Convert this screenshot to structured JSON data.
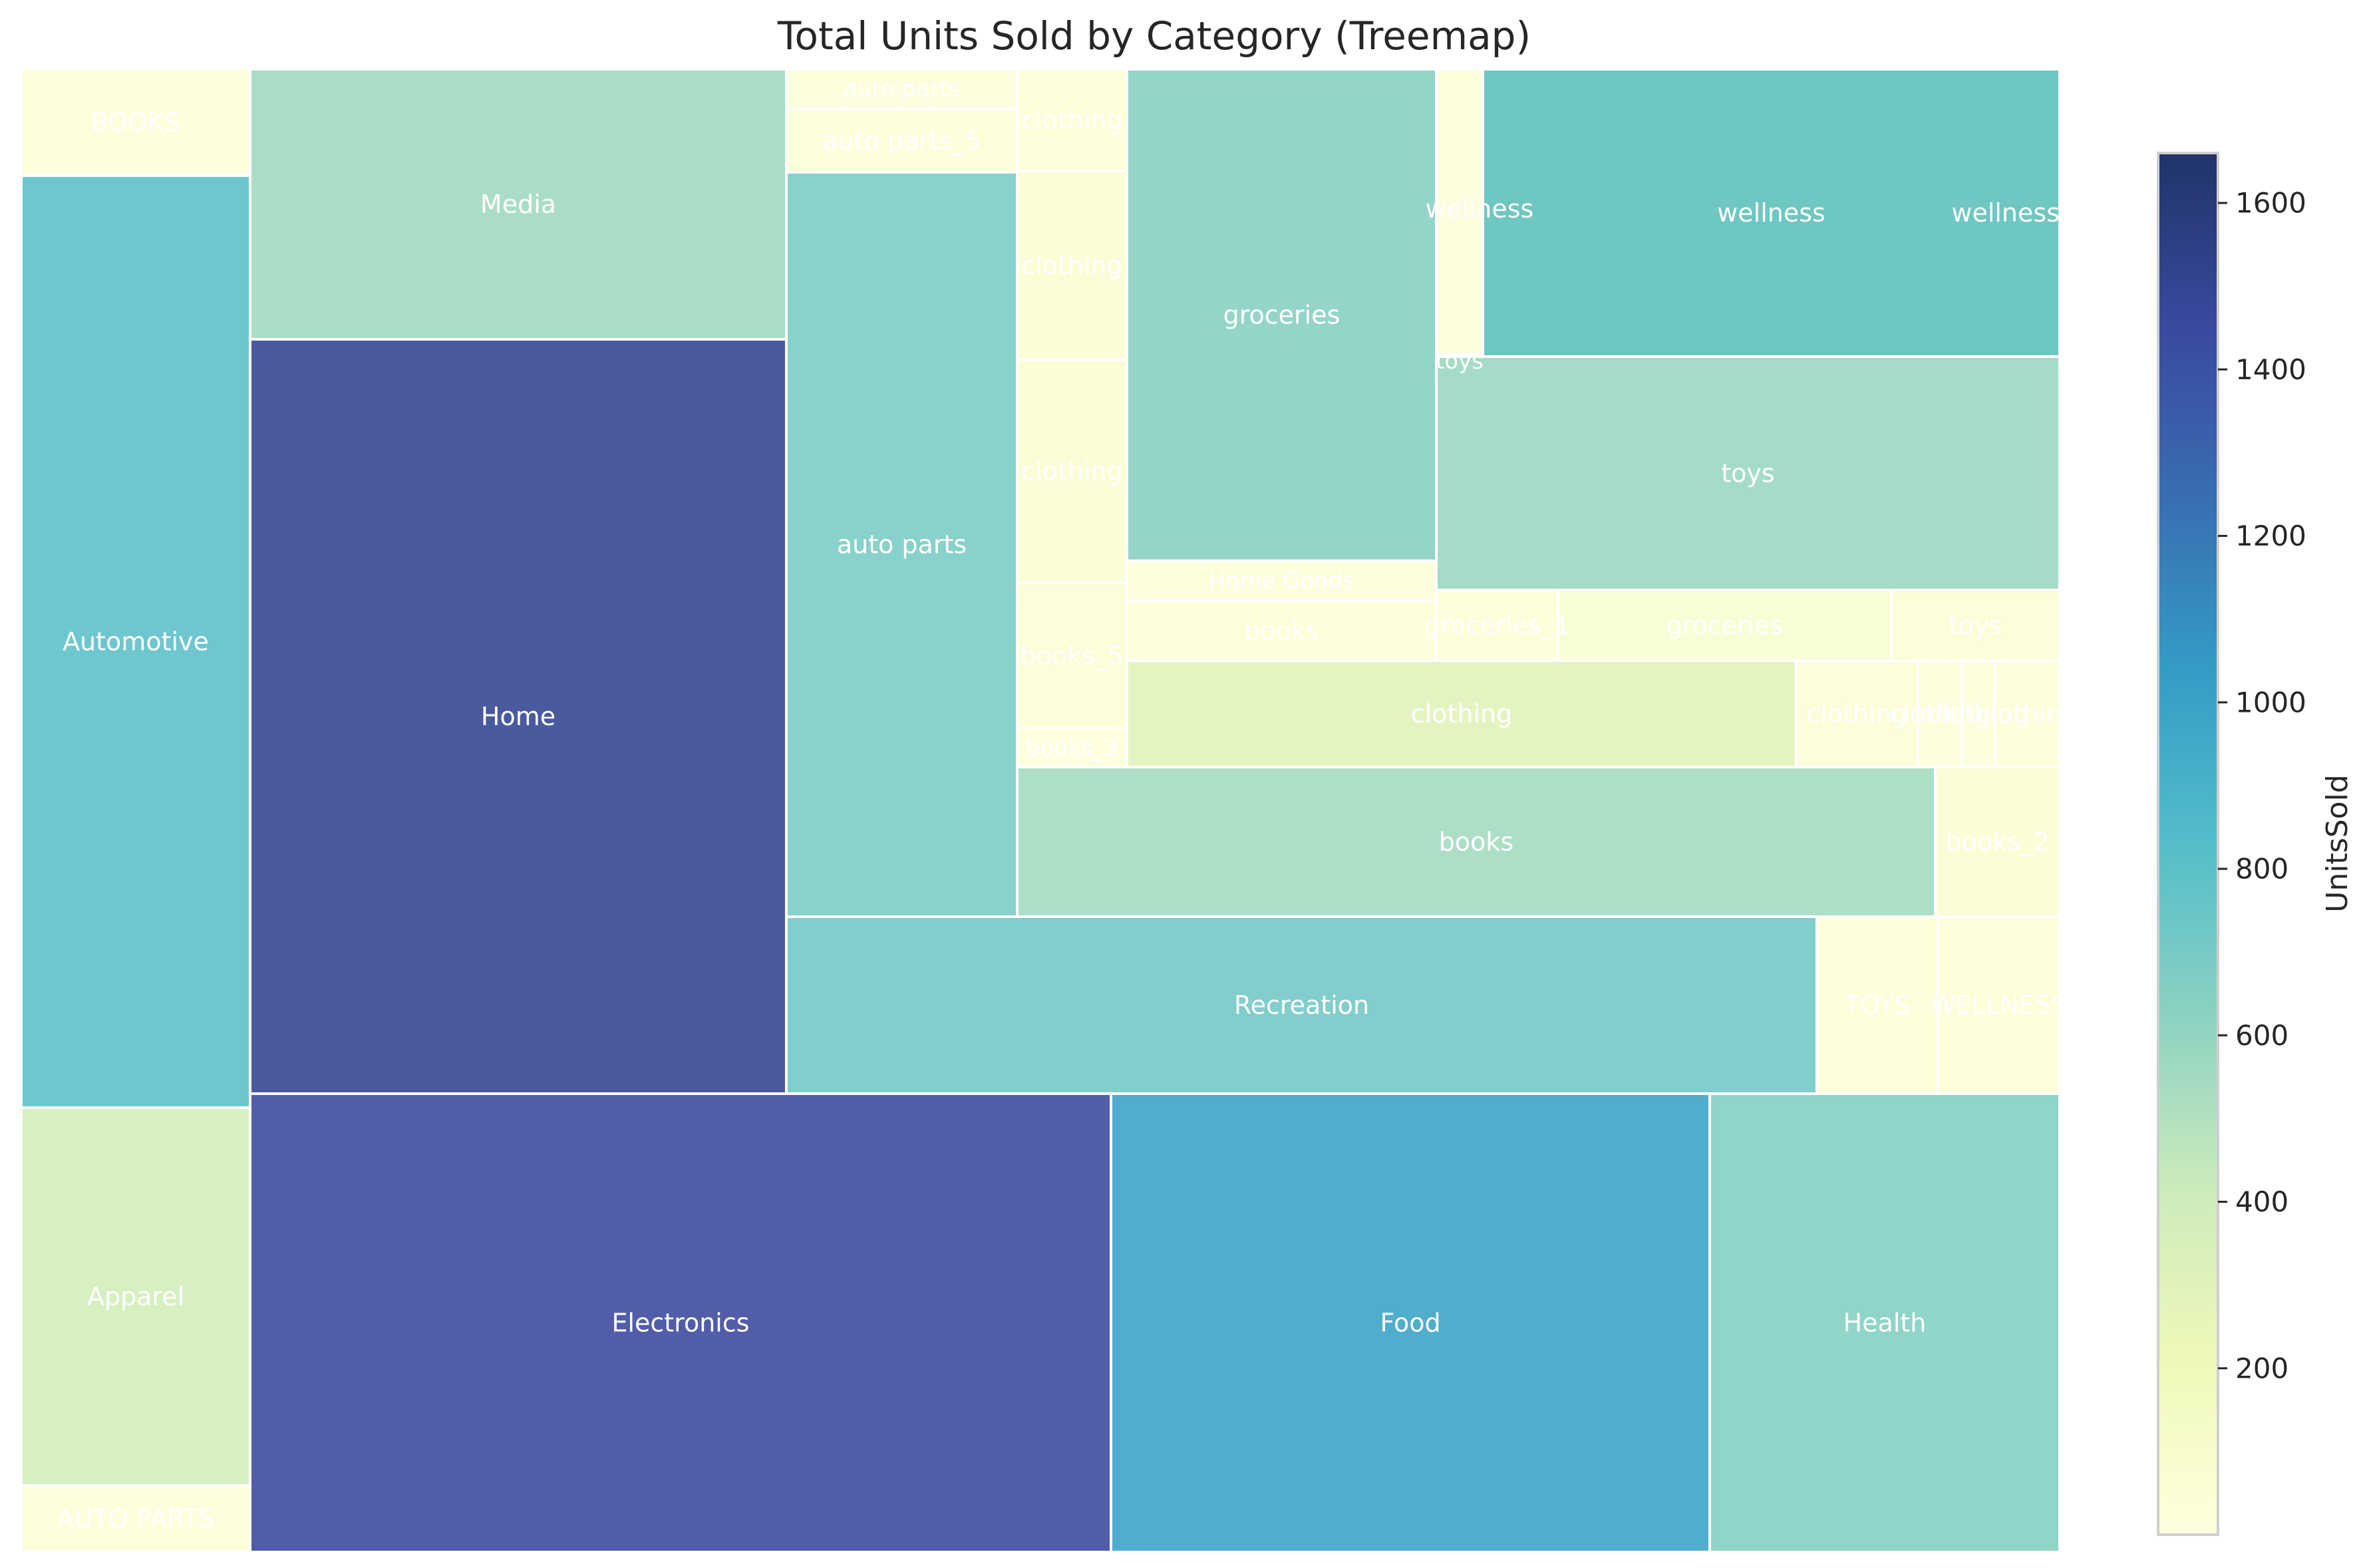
{
  "chart_data": {
    "type": "treemap",
    "title": "Total Units Sold by Category (Treemap)",
    "colorbar": {
      "label": "UnitsSold",
      "min": 0,
      "max": 1660,
      "ticks": [
        200,
        400,
        600,
        800,
        1000,
        1200,
        1400,
        1600
      ],
      "colormap": "YlGnBu"
    },
    "tiles": [
      {
        "label": "BOOKS",
        "value": 30
      },
      {
        "label": "Automotive",
        "value": 800
      },
      {
        "label": "Apparel",
        "value": 380
      },
      {
        "label": "AUTO PARTS",
        "value": 30
      },
      {
        "label": "Media",
        "value": 560
      },
      {
        "label": "Home",
        "value": 1500
      },
      {
        "label": "Electronics",
        "value": 1450
      },
      {
        "label": "Food",
        "value": 1000
      },
      {
        "label": "Health",
        "value": 660
      },
      {
        "label": "Recreation",
        "value": 720
      },
      {
        "label": "auto parts",
        "value": 20
      },
      {
        "label": "auto parts_5",
        "value": 30
      },
      {
        "label": "auto parts",
        "value": 690
      },
      {
        "label": "clothing",
        "value": 40
      },
      {
        "label": "clothing",
        "value": 60
      },
      {
        "label": "clothing",
        "value": 70
      },
      {
        "label": "books_5",
        "value": 50
      },
      {
        "label": "books_3",
        "value": 10
      },
      {
        "label": "groceries",
        "value": 640
      },
      {
        "label": "wellness",
        "value": 20
      },
      {
        "label": "wellness",
        "value": 700
      },
      {
        "label": "wellness",
        "value": 700
      },
      {
        "label": "toys",
        "value": 10
      },
      {
        "label": "toys",
        "value": 580
      },
      {
        "label": "Home Goods",
        "value": 30
      },
      {
        "label": "books",
        "value": 40
      },
      {
        "label": "groceries_1",
        "value": 40
      },
      {
        "label": "groceries",
        "value": 80
      },
      {
        "label": "toys",
        "value": 50
      },
      {
        "label": "clothing",
        "value": 300
      },
      {
        "label": "clothing",
        "value": 50
      },
      {
        "label": "clothing",
        "value": 20
      },
      {
        "label": "clothing",
        "value": 20
      },
      {
        "label": "clothing",
        "value": 40
      },
      {
        "label": "books",
        "value": 550
      },
      {
        "label": "books_2",
        "value": 60
      },
      {
        "label": "TOYS",
        "value": 40
      },
      {
        "label": "WELLNESS",
        "value": 40
      }
    ]
  }
}
